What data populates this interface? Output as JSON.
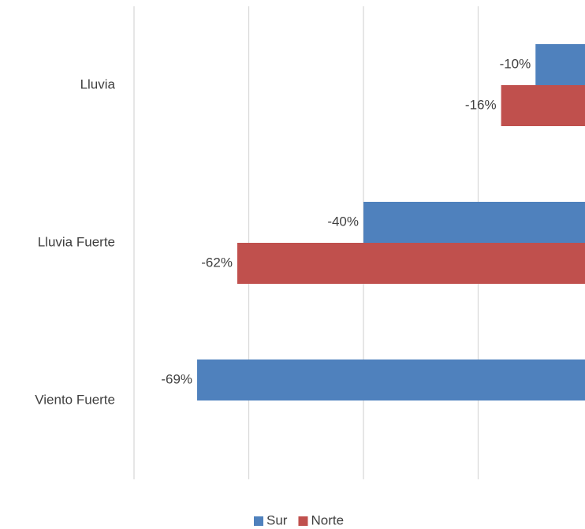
{
  "chart_data": {
    "type": "bar",
    "orientation": "horizontal",
    "categories": [
      "Lluvia",
      "Lluvia Fuerte",
      "Viento Fuerte"
    ],
    "series": [
      {
        "name": "Sur",
        "color": "#4f81bd",
        "values": [
          -10,
          -40,
          -69
        ],
        "value_labels": [
          "-10%",
          "-40%",
          "-69%"
        ]
      },
      {
        "name": "Norte",
        "color": "#c0504d",
        "values": [
          -16,
          -62,
          null
        ],
        "value_labels": [
          "-16%",
          "-62%",
          null
        ]
      }
    ],
    "xlim": [
      -80,
      0
    ],
    "xticks": [
      -80,
      -60,
      -40,
      -20
    ],
    "grid": true,
    "legend": "bottom"
  }
}
